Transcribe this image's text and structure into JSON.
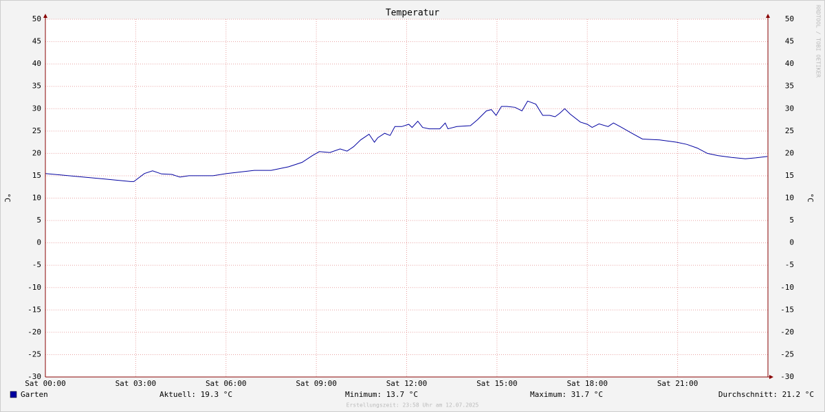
{
  "chart_data": {
    "type": "line",
    "title": "Temperatur",
    "y_label": "°C",
    "watermark": "RRDTOOL / TOBI OETIKER",
    "footer": "Erstellungszeit: 23:58 Uhr am 12.07.2025",
    "grid": true,
    "xlim": [
      0,
      24
    ],
    "xticks": [
      {
        "value": 0,
        "label": "Sat 00:00"
      },
      {
        "value": 3,
        "label": "Sat 03:00"
      },
      {
        "value": 6,
        "label": "Sat 06:00"
      },
      {
        "value": 9,
        "label": "Sat 09:00"
      },
      {
        "value": 12,
        "label": "Sat 12:00"
      },
      {
        "value": 15,
        "label": "Sat 15:00"
      },
      {
        "value": 18,
        "label": "Sat 18:00"
      },
      {
        "value": 21,
        "label": "Sat 21:00"
      }
    ],
    "ylim": [
      -30,
      50
    ],
    "yticks": [
      50,
      45,
      40,
      35,
      30,
      25,
      20,
      15,
      10,
      5,
      0,
      -5,
      -10,
      -15,
      -20,
      -25,
      -30
    ],
    "x": [
      0,
      1.92,
      2.83,
      2.94,
      3.29,
      3.56,
      3.86,
      4.2,
      4.47,
      4.77,
      5.57,
      6.02,
      6.94,
      7.5,
      8.08,
      8.53,
      8.87,
      9.1,
      9.45,
      9.79,
      10.02,
      10.24,
      10.47,
      10.75,
      10.93,
      11.04,
      11.27,
      11.45,
      11.61,
      11.84,
      12.07,
      12.18,
      12.37,
      12.53,
      12.75,
      13.1,
      13.28,
      13.37,
      13.67,
      14.12,
      14.35,
      14.65,
      14.81,
      14.97,
      15.15,
      15.33,
      15.6,
      15.83,
      16.02,
      16.29,
      16.52,
      16.75,
      16.93,
      17.09,
      17.25,
      17.43,
      17.77,
      18.0,
      18.16,
      18.39,
      18.69,
      18.87,
      19.14,
      19.48,
      19.83,
      20.4,
      20.97,
      21.31,
      21.65,
      21.99,
      22.34,
      22.79,
      23.25,
      23.59,
      23.98
    ],
    "series": [
      {
        "name": "Garten",
        "color": "#0000a0",
        "values": [
          15.5,
          14.3,
          13.7,
          13.7,
          15.5,
          16.1,
          15.4,
          15.3,
          14.7,
          15.0,
          15.0,
          15.5,
          16.2,
          16.2,
          17.0,
          18.0,
          19.5,
          20.4,
          20.2,
          21.0,
          20.5,
          21.5,
          23.0,
          24.3,
          22.5,
          23.5,
          24.5,
          24.0,
          26.0,
          26.0,
          26.5,
          25.8,
          27.2,
          25.8,
          25.5,
          25.5,
          26.8,
          25.5,
          26.0,
          26.2,
          27.5,
          29.5,
          29.8,
          28.5,
          30.5,
          30.5,
          30.3,
          29.5,
          31.7,
          31.0,
          28.5,
          28.5,
          28.2,
          29.0,
          30.0,
          28.8,
          27.0,
          26.5,
          25.8,
          26.6,
          26.0,
          26.8,
          25.8,
          24.5,
          23.2,
          23.0,
          22.5,
          22.0,
          21.2,
          20.0,
          19.5,
          19.1,
          18.8,
          19.0,
          19.3
        ]
      }
    ],
    "stats": [
      "Aktuell: 19.3 °C",
      "Minimum: 13.7 °C",
      "Maximum: 31.7 °C",
      "Durchschnitt: 21.2 °C"
    ]
  }
}
